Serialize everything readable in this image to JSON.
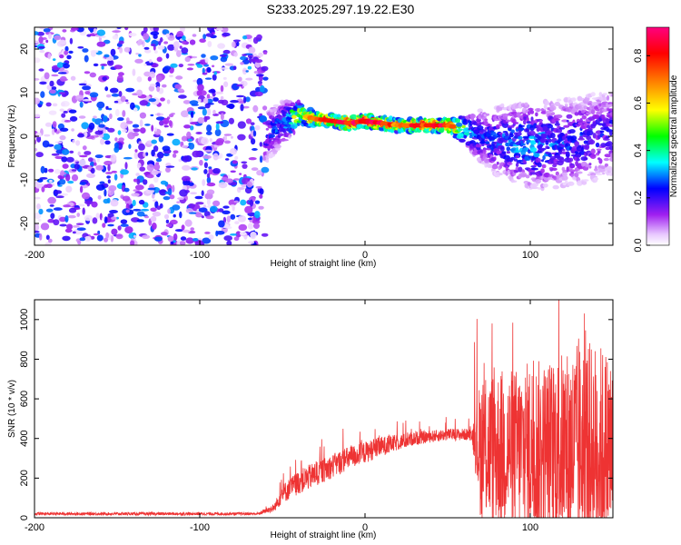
{
  "title": "S233.2025.297.19.22.E30",
  "colors": {
    "background": "#ffffff",
    "snr_line": "#ee3333",
    "axis": "#000000",
    "colormap": [
      "#ffffff",
      "#e8c8ff",
      "#a020f0",
      "#0000ff",
      "#00ffff",
      "#00ff00",
      "#ffff00",
      "#ff8000",
      "#ff0000",
      "#ff0080"
    ]
  },
  "chart_data": [
    {
      "type": "heatmap",
      "name": "spectrogram",
      "xlabel": "Height of straight line (km)",
      "ylabel": "Frequency (Hz)",
      "xlim": [
        -200,
        150
      ],
      "ylim": [
        -25,
        25
      ],
      "xticks": [
        -200,
        -100,
        0,
        100
      ],
      "xtick_labels": [
        "-200",
        "-100",
        "0",
        "100"
      ],
      "yticks": [
        -20,
        -10,
        0,
        10,
        20
      ],
      "ytick_labels": [
        "-20",
        "-10",
        "0",
        "10",
        "20"
      ],
      "colorbar": {
        "label": "Normalized spectral amplitude",
        "range": [
          0.0,
          0.92
        ],
        "ticks": [
          0.0,
          0.2,
          0.4,
          0.6,
          0.8
        ],
        "tick_labels": [
          "0.0",
          "0.2",
          "0.4",
          "0.6",
          "0.8"
        ]
      },
      "features": {
        "noise_region_km": [
          -200,
          -60
        ],
        "empty_region_km": [
          -60,
          -50
        ],
        "signal_ridge": {
          "x_km": [
            -60,
            -50,
            -40,
            -30,
            -20,
            -10,
            0,
            10,
            20,
            30,
            40,
            50,
            60,
            70,
            80,
            90,
            100,
            110,
            120,
            130,
            140,
            150
          ],
          "freq_hz": [
            0,
            3,
            5,
            4,
            3.5,
            3,
            3.5,
            3,
            2.5,
            2.5,
            2.5,
            2.5,
            1.5,
            0,
            -1,
            -1.5,
            -2,
            -2,
            -1.5,
            -1,
            0,
            1
          ],
          "amplitude": [
            0.3,
            0.4,
            0.6,
            0.7,
            0.8,
            0.85,
            0.9,
            0.8,
            0.75,
            0.8,
            0.85,
            0.8,
            0.5,
            0.35,
            0.35,
            0.4,
            0.45,
            0.4,
            0.35,
            0.35,
            0.3,
            0.3
          ],
          "spread_hz": [
            6,
            5,
            3,
            1.5,
            1.5,
            1.5,
            1.5,
            1.5,
            1.5,
            1.5,
            1.5,
            1.5,
            3,
            6,
            8,
            9,
            10,
            10,
            10,
            10,
            10,
            10
          ]
        }
      }
    },
    {
      "type": "line",
      "name": "snr",
      "xlabel": "Height of straight line (km)",
      "ylabel": "SNR (10 * v/v)",
      "xlim": [
        -200,
        150
      ],
      "ylim": [
        0,
        1100
      ],
      "xticks": [
        -200,
        -100,
        0,
        100
      ],
      "xtick_labels": [
        "-200",
        "-100",
        "0",
        "100"
      ],
      "yticks": [
        0,
        200,
        400,
        600,
        800,
        1000
      ],
      "ytick_labels": [
        "0",
        "200",
        "400",
        "600",
        "800",
        "1000"
      ],
      "series": [
        {
          "name": "SNR",
          "envelope_x": [
            -200,
            -150,
            -100,
            -65,
            -55,
            -50,
            -40,
            -30,
            -20,
            -10,
            0,
            10,
            20,
            30,
            40,
            50,
            60,
            65,
            70,
            80,
            90,
            100,
            110,
            120,
            130,
            140,
            150
          ],
          "baseline": [
            20,
            20,
            20,
            20,
            50,
            120,
            180,
            220,
            260,
            300,
            330,
            360,
            380,
            400,
            410,
            420,
            420,
            420,
            350,
            350,
            350,
            350,
            350,
            350,
            350,
            350,
            350
          ],
          "noise_amplitude": [
            15,
            15,
            15,
            15,
            40,
            100,
            120,
            130,
            120,
            120,
            110,
            100,
            80,
            70,
            60,
            60,
            60,
            60,
            400,
            450,
            450,
            500,
            500,
            550,
            600,
            600,
            550
          ],
          "peak_max": 1100
        }
      ]
    }
  ]
}
